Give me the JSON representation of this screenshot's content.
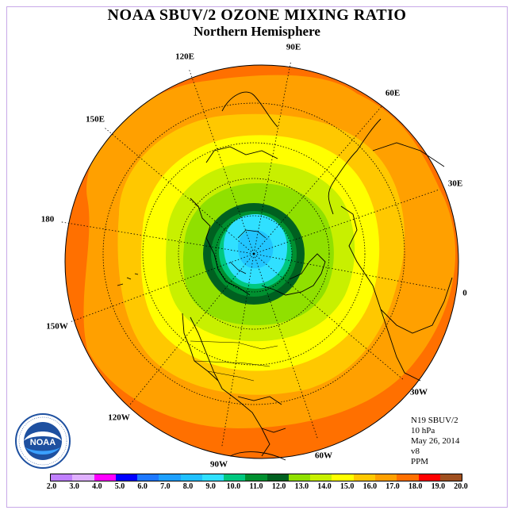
{
  "header": {
    "title": "NOAA SBUV/2 OZONE MIXING RATIO",
    "subtitle": "Northern Hemisphere"
  },
  "longitude_labels": [
    "90E",
    "60E",
    "30E",
    "0",
    "30W",
    "60W",
    "90W",
    "120W",
    "150W",
    "180",
    "150E",
    "120E"
  ],
  "info": {
    "satellite": "N19 SBUV/2",
    "level": "10 hPa",
    "date": "May 26, 2014",
    "version": "v8",
    "units": "PPM"
  },
  "logo": {
    "text": "NOAA",
    "icon": "noaa-logo-icon"
  },
  "colorbar": {
    "ticks": [
      "2.0",
      "3.0",
      "4.0",
      "5.0",
      "6.0",
      "7.0",
      "8.0",
      "9.0",
      "10.0",
      "11.0",
      "12.0",
      "13.0",
      "14.0",
      "15.0",
      "16.0",
      "17.0",
      "18.0",
      "19.0",
      "20.0"
    ],
    "colors": [
      "#c080ff",
      "#e0b0ff",
      "#ff00ff",
      "#0000ff",
      "#1e78ff",
      "#1ea0ff",
      "#20c0ff",
      "#30e0ff",
      "#00c880",
      "#009030",
      "#006020",
      "#90e000",
      "#c8f000",
      "#ffff00",
      "#ffc800",
      "#ffa000",
      "#ff7000",
      "#ff0000",
      "#a05020"
    ]
  },
  "map_data": {
    "projection": "north polar stereographic",
    "ozone_levels_ppm": [
      18,
      17,
      16,
      15,
      14,
      13,
      12,
      11,
      10,
      9
    ],
    "colors": {
      "ocean": "#ffffff",
      "coast": "#000000"
    }
  }
}
